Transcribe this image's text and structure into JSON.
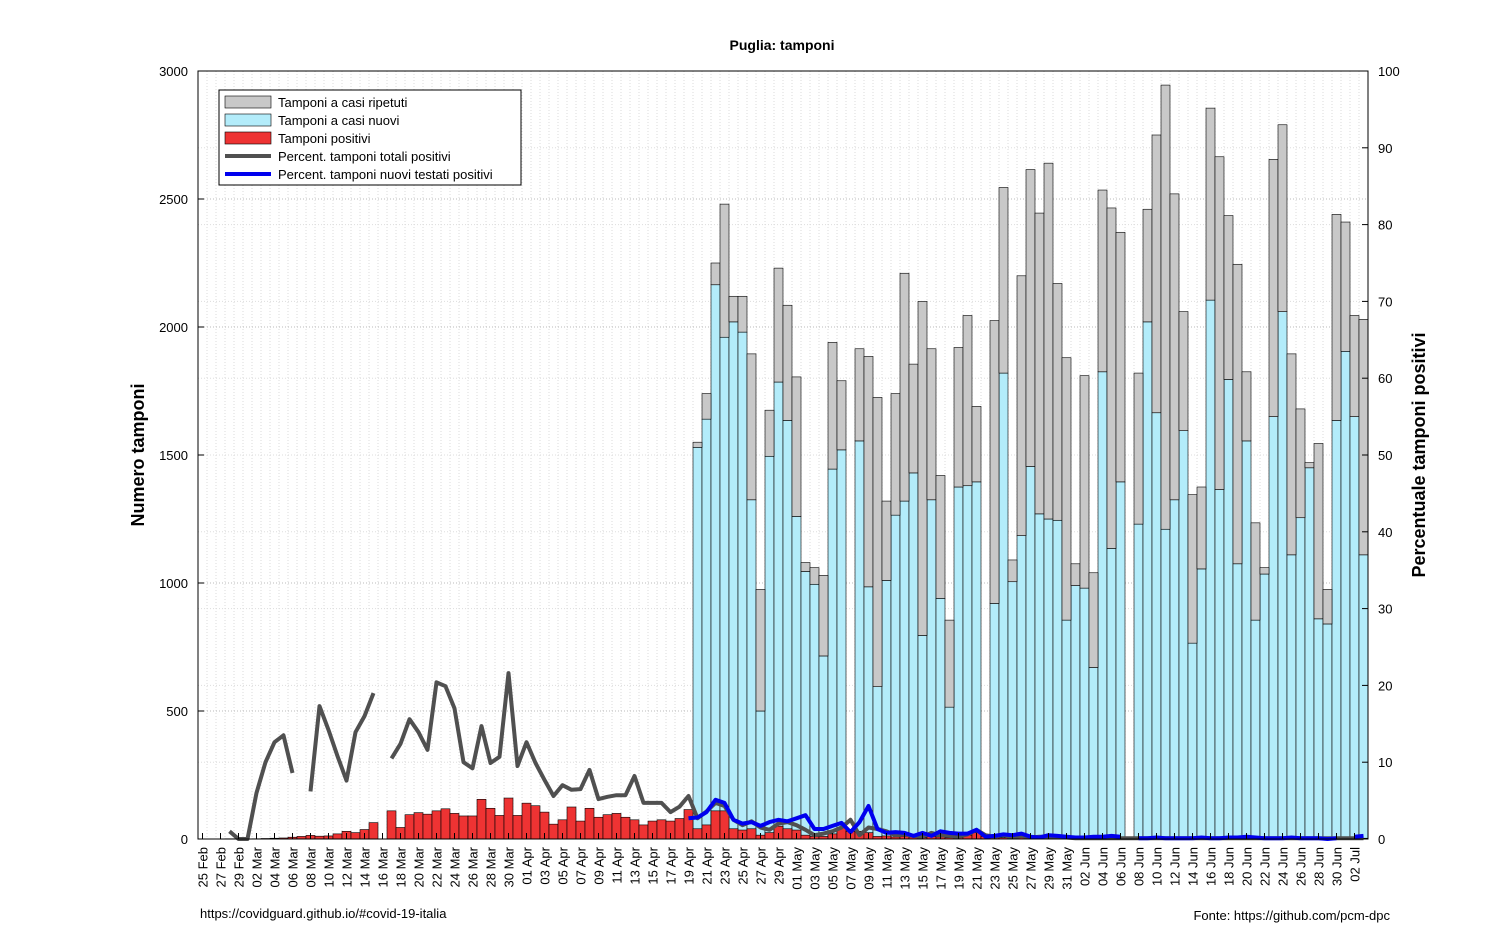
{
  "chart_data": {
    "type": "bar",
    "title": "Puglia: tamponi",
    "ylabel": "Numero tamponi",
    "y2label": "Percentuale tamponi positivi",
    "footer_left": "https://covidguard.github.io/#covid-19-italia",
    "footer_right": "Fonte: https://github.com/pcm-dpc",
    "ylim": [
      0,
      3000
    ],
    "yticks": [
      0,
      500,
      1000,
      1500,
      2000,
      2500,
      3000
    ],
    "y2lim": [
      0,
      100
    ],
    "y2ticks": [
      0,
      10,
      20,
      30,
      40,
      50,
      60,
      70,
      80,
      90,
      100
    ],
    "grid": true,
    "legend": "upper left",
    "categories": [
      "25 Feb",
      null,
      "27 Feb",
      null,
      "29 Feb",
      null,
      "02 Mar",
      null,
      "04 Mar",
      null,
      "06 Mar",
      null,
      "08 Mar",
      null,
      "10 Mar",
      null,
      "12 Mar",
      null,
      "14 Mar",
      null,
      "16 Mar",
      null,
      "18 Mar",
      null,
      "20 Mar",
      null,
      "22 Mar",
      null,
      "24 Mar",
      null,
      "26 Mar",
      null,
      "28 Mar",
      null,
      "30 Mar",
      null,
      "01 Apr",
      null,
      "03 Apr",
      null,
      "05 Apr",
      null,
      "07 Apr",
      null,
      "09 Apr",
      null,
      "11 Apr",
      null,
      "13 Apr",
      null,
      "15 Apr",
      null,
      "17 Apr",
      null,
      "19 Apr",
      null,
      "21 Apr",
      null,
      "23 Apr",
      null,
      "25 Apr",
      null,
      "27 Apr",
      null,
      "29 Apr",
      null,
      "01 May",
      null,
      "03 May",
      null,
      "05 May",
      null,
      "07 May",
      null,
      "09 May",
      null,
      "11 May",
      null,
      "13 May",
      null,
      "15 May",
      null,
      "17 May",
      null,
      "19 May",
      null,
      "21 May",
      null,
      "23 May",
      null,
      "25 May",
      null,
      "27 May",
      null,
      "29 May",
      null,
      "31 May",
      null,
      "02 Jun",
      null,
      "04 Jun",
      null,
      "06 Jun",
      null,
      "08 Jun",
      null,
      "10 Jun",
      null,
      "12 Jun",
      null,
      "14 Jun",
      null,
      "16 Jun",
      null,
      "18 Jun",
      null,
      "20 Jun",
      null,
      "22 Jun",
      null,
      "24 Jun",
      null,
      "26 Jun",
      null,
      "28 Jun",
      null,
      "30 Jun",
      null,
      "02 Jul",
      null
    ],
    "series": [
      {
        "name": "Tamponi a casi ripetuti",
        "type": "bar",
        "stack": "tests",
        "color": "#c8c8c8",
        "values": [
          null,
          null,
          null,
          null,
          null,
          null,
          null,
          null,
          null,
          null,
          null,
          null,
          null,
          null,
          null,
          null,
          null,
          null,
          null,
          null,
          null,
          null,
          null,
          null,
          null,
          null,
          null,
          null,
          null,
          null,
          null,
          null,
          null,
          null,
          null,
          null,
          null,
          null,
          null,
          null,
          null,
          null,
          null,
          null,
          null,
          null,
          null,
          null,
          null,
          null,
          null,
          null,
          null,
          null,
          null,
          20,
          100,
          85,
          520,
          100,
          140,
          570,
          475,
          180,
          445,
          450,
          545,
          35,
          65,
          315,
          495,
          270,
          null,
          360,
          900,
          1130,
          310,
          475,
          890,
          425,
          1305,
          590,
          480,
          340,
          545,
          665,
          295,
          null,
          1105,
          725,
          85,
          1015,
          1160,
          1175,
          1390,
          925,
          1025,
          85,
          830,
          370,
          710,
          1330,
          975,
          null,
          590,
          440,
          1085,
          1735,
          1195,
          465,
          580,
          320,
          750,
          1300,
          640,
          1170,
          270,
          380,
          25,
          1005,
          730,
          785,
          425,
          20,
          685,
          135,
          805,
          505,
          395,
          920
        ]
      },
      {
        "name": "Tamponi a casi nuovi",
        "type": "bar",
        "stack": "tests",
        "color": "#b3ecfa",
        "values": [
          null,
          null,
          null,
          null,
          null,
          null,
          null,
          null,
          null,
          null,
          null,
          null,
          null,
          null,
          null,
          null,
          null,
          null,
          null,
          null,
          null,
          null,
          null,
          null,
          null,
          null,
          null,
          null,
          null,
          null,
          null,
          null,
          null,
          null,
          null,
          null,
          null,
          null,
          null,
          null,
          null,
          null,
          null,
          null,
          null,
          null,
          null,
          null,
          null,
          null,
          null,
          null,
          null,
          null,
          null,
          1530,
          1640,
          2165,
          1960,
          2020,
          1980,
          1325,
          500,
          1495,
          1785,
          1635,
          1260,
          1045,
          995,
          715,
          1445,
          1520,
          null,
          1555,
          985,
          595,
          1010,
          1265,
          1320,
          1430,
          795,
          1325,
          940,
          515,
          1375,
          1380,
          1395,
          null,
          920,
          1820,
          1005,
          1185,
          1455,
          1270,
          1250,
          1245,
          855,
          990,
          980,
          670,
          1825,
          1135,
          1395,
          null,
          1230,
          2020,
          1665,
          1210,
          1325,
          1595,
          765,
          1055,
          2105,
          1365,
          1795,
          1075,
          1555,
          855,
          1035,
          1650,
          2060,
          1110,
          1255,
          1450,
          860,
          840,
          1635,
          1905,
          1650,
          1110
        ]
      },
      {
        "name": "Tamponi positivi",
        "type": "bar",
        "color": "#ee3333",
        "values": [
          0,
          0,
          0,
          1,
          0,
          0,
          1,
          2,
          3,
          4,
          7,
          10,
          14,
          11,
          12,
          20,
          30,
          25,
          37,
          64,
          null,
          110,
          45,
          95,
          103,
          97,
          110,
          118,
          100,
          90,
          90,
          155,
          120,
          92,
          160,
          92,
          140,
          130,
          105,
          58,
          75,
          125,
          70,
          120,
          85,
          95,
          100,
          85,
          75,
          55,
          70,
          75,
          70,
          80,
          115,
          40,
          55,
          110,
          110,
          40,
          35,
          40,
          15,
          25,
          50,
          40,
          35,
          15,
          10,
          10,
          20,
          45,
          30,
          30,
          25,
          10,
          12,
          8,
          10,
          7,
          5,
          10,
          8,
          5,
          5,
          15,
          25,
          10,
          5,
          5,
          4,
          6,
          4,
          3,
          3,
          4,
          3,
          2,
          3,
          2,
          4,
          3,
          2,
          1,
          2,
          2,
          3,
          1,
          2,
          1,
          1,
          2,
          2,
          1,
          2,
          2,
          3,
          2,
          1,
          2,
          1,
          2,
          1,
          1,
          1,
          0,
          1,
          1,
          2,
          3
        ]
      },
      {
        "name": "Percent. tamponi totali positivi",
        "type": "line",
        "axis": "y2",
        "color": "#505050",
        "width": 4,
        "values": [
          null,
          null,
          null,
          1,
          0,
          0,
          6,
          10,
          12.6,
          13.5,
          8.6,
          null,
          6.2,
          17.3,
          14.2,
          10.8,
          7.6,
          13.9,
          16,
          19,
          null,
          10.5,
          12.4,
          15.6,
          13.9,
          11.6,
          20.4,
          19.9,
          17,
          10,
          9.2,
          14.7,
          9.9,
          10.7,
          21.6,
          9.5,
          12.6,
          9.9,
          7.7,
          5.6,
          7,
          6.4,
          6.5,
          9,
          5.2,
          5.5,
          5.7,
          5.7,
          8.2,
          4.7,
          4.7,
          4.7,
          3.5,
          4.2,
          5.6,
          2.7,
          3.6,
          4.7,
          4.3,
          2.5,
          1.8,
          2.3,
          1.5,
          1.2,
          2,
          2.2,
          1.8,
          1.2,
          0.5,
          0.7,
          1,
          1.5,
          2.5,
          0.5,
          1.5,
          1.3,
          1,
          0.5,
          0.6,
          0.4,
          0.3,
          0.8,
          0.5,
          0.4,
          0.3,
          0.6,
          1.2,
          0.5,
          0.3,
          0.5,
          0.2,
          0.4,
          0.2,
          0.3,
          0.3,
          0.2,
          0.2,
          0.1,
          0.1,
          0.1,
          0.1,
          0.1,
          0.1,
          0.1,
          0.1,
          0.1,
          0.1,
          0.1,
          0.1,
          0.1,
          0.1,
          0.1,
          0.1,
          0.1,
          0.1,
          0.1,
          0.1,
          0.1,
          0.1,
          0.1,
          0.1,
          0.1,
          0.1,
          0.1,
          0.1,
          0.1,
          0.1,
          0.1,
          0.1,
          0.1
        ]
      },
      {
        "name": "Percent. tamponi nuovi testati positivi",
        "type": "line",
        "axis": "y2",
        "color": "#0000ee",
        "width": 4,
        "values": [
          null,
          null,
          null,
          null,
          null,
          null,
          null,
          null,
          null,
          null,
          null,
          null,
          null,
          null,
          null,
          null,
          null,
          null,
          null,
          null,
          null,
          null,
          null,
          null,
          null,
          null,
          null,
          null,
          null,
          null,
          null,
          null,
          null,
          null,
          null,
          null,
          null,
          null,
          null,
          null,
          null,
          null,
          null,
          null,
          null,
          null,
          null,
          null,
          null,
          null,
          null,
          null,
          null,
          null,
          2.7,
          2.8,
          3.5,
          5.1,
          4.7,
          2.5,
          2,
          2.2,
          1.7,
          2.2,
          2.5,
          2.3,
          2.7,
          3.1,
          1.3,
          1.3,
          1.7,
          2.1,
          0.9,
          2.2,
          4.3,
          1.3,
          0.8,
          0.9,
          0.8,
          0.4,
          0.8,
          0.4,
          1,
          0.8,
          0.7,
          0.7,
          1.2,
          0.3,
          0.4,
          0.6,
          0.5,
          0.7,
          0.3,
          0.2,
          0.5,
          0.4,
          0.3,
          0.2,
          0.2,
          0.3,
          0.3,
          0.4,
          0.3,
          null,
          0.1,
          0.1,
          0.2,
          0.1,
          0.1,
          0.1,
          0.1,
          0.2,
          0.1,
          0.1,
          0.2,
          0.2,
          0.3,
          0.2,
          0.1,
          0.1,
          0.1,
          0.2,
          0.1,
          0.1,
          0.1,
          0,
          0.1,
          null,
          0.3,
          0.4
        ]
      }
    ]
  }
}
